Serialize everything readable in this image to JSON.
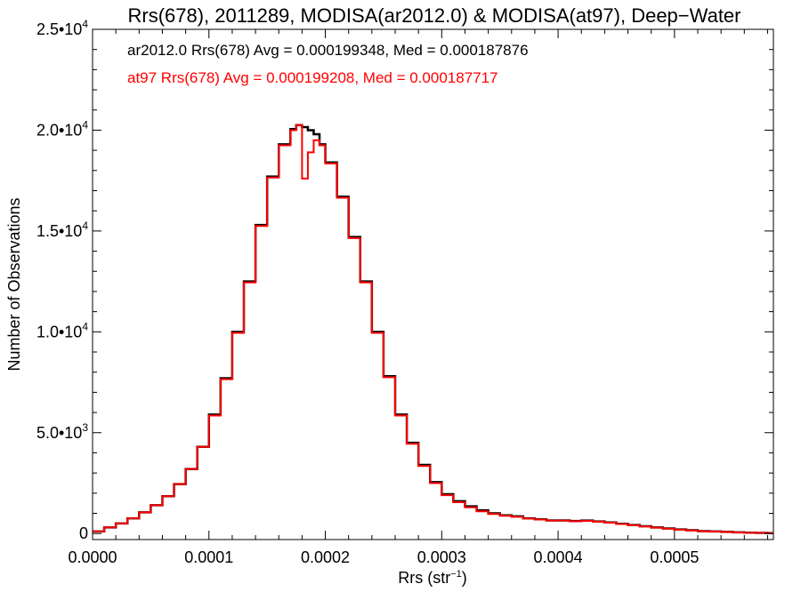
{
  "chart_data": {
    "type": "line",
    "step": true,
    "title": "Rrs(678), 2011289, MODISA(ar2012.0) & MODISA(at97), Deep−Water",
    "xlabel": "Rrs (str",
    "xlabel_sup": "−1",
    "xlabel_close": ")",
    "ylabel": "Number of Observations",
    "xlim": [
      0.0,
      0.000585
    ],
    "ylim": [
      -300,
      25000
    ],
    "x_ticks": [
      {
        "value": 0.0,
        "label": "0.0000"
      },
      {
        "value": 0.0001,
        "label": "0.0001"
      },
      {
        "value": 0.0002,
        "label": "0.0002"
      },
      {
        "value": 0.0003,
        "label": "0.0003"
      },
      {
        "value": 0.0004,
        "label": "0.0004"
      },
      {
        "value": 0.0005,
        "label": "0.0005"
      }
    ],
    "y_ticks": [
      {
        "value": 0,
        "mant": "0",
        "exp": ""
      },
      {
        "value": 5000,
        "mant": "5.0•10",
        "exp": "3"
      },
      {
        "value": 10000,
        "mant": "1.0•10",
        "exp": "4"
      },
      {
        "value": 15000,
        "mant": "1.5•10",
        "exp": "4"
      },
      {
        "value": 20000,
        "mant": "2.0•10",
        "exp": "4"
      },
      {
        "value": 25000,
        "mant": "2.5•10",
        "exp": "4"
      }
    ],
    "annotations": [
      {
        "text": "ar2012.0 Rrs(678) Avg = 0.000199348, Med = 0.000187876",
        "color": "#000000"
      },
      {
        "text": "at97 Rrs(678) Avg = 0.000199208, Med = 0.000187717",
        "color": "#ff0000"
      }
    ],
    "series": [
      {
        "name": "ar2012.0",
        "color": "#000000",
        "x": [
          0.0,
          1e-05,
          2e-05,
          3e-05,
          4e-05,
          5e-05,
          6e-05,
          7e-05,
          8e-05,
          9e-05,
          0.0001,
          0.00011,
          0.00012,
          0.00013,
          0.00014,
          0.00015,
          0.00016,
          0.00017,
          0.000175,
          0.00018,
          0.000185,
          0.00019,
          0.000195,
          0.0002,
          0.00021,
          0.00022,
          0.00023,
          0.00024,
          0.00025,
          0.00026,
          0.00027,
          0.00028,
          0.00029,
          0.0003,
          0.00031,
          0.00032,
          0.00033,
          0.00034,
          0.00035,
          0.00036,
          0.00037,
          0.00038,
          0.00039,
          0.0004,
          0.00041,
          0.00042,
          0.00043,
          0.00044,
          0.00045,
          0.00046,
          0.00047,
          0.00048,
          0.00049,
          0.0005,
          0.00051,
          0.00052,
          0.00053,
          0.00054,
          0.00055,
          0.00056,
          0.00057,
          0.00058
        ],
        "y": [
          100,
          300,
          500,
          750,
          1050,
          1400,
          1850,
          2450,
          3200,
          4300,
          5900,
          7700,
          10000,
          12500,
          15300,
          17700,
          19300,
          20050,
          20250,
          20150,
          20000,
          19800,
          19300,
          18400,
          16700,
          14700,
          12500,
          10000,
          7800,
          5900,
          4500,
          3400,
          2550,
          1950,
          1600,
          1350,
          1150,
          1000,
          900,
          850,
          750,
          700,
          650,
          650,
          620,
          640,
          600,
          550,
          480,
          420,
          360,
          300,
          250,
          200,
          160,
          120,
          100,
          80,
          60,
          40,
          30,
          20
        ]
      },
      {
        "name": "at97",
        "color": "#ff0000",
        "x": [
          0.0,
          1e-05,
          2e-05,
          3e-05,
          4e-05,
          5e-05,
          6e-05,
          7e-05,
          8e-05,
          9e-05,
          0.0001,
          0.00011,
          0.00012,
          0.00013,
          0.00014,
          0.00015,
          0.00016,
          0.00017,
          0.000175,
          0.00018,
          0.000185,
          0.00019,
          0.000195,
          0.0002,
          0.00021,
          0.00022,
          0.00023,
          0.00024,
          0.00025,
          0.00026,
          0.00027,
          0.00028,
          0.00029,
          0.0003,
          0.00031,
          0.00032,
          0.00033,
          0.00034,
          0.00035,
          0.00036,
          0.00037,
          0.00038,
          0.00039,
          0.0004,
          0.00041,
          0.00042,
          0.00043,
          0.00044,
          0.00045,
          0.00046,
          0.00047,
          0.00048,
          0.00049,
          0.0005,
          0.00051,
          0.00052,
          0.00053,
          0.00054,
          0.00055,
          0.00056,
          0.00057,
          0.00058
        ],
        "y": [
          100,
          300,
          500,
          750,
          1050,
          1400,
          1850,
          2450,
          3200,
          4300,
          5850,
          7650,
          9950,
          12450,
          15250,
          17650,
          19250,
          20000,
          20250,
          17600,
          18900,
          19500,
          19250,
          18350,
          16650,
          14650,
          12450,
          9950,
          7750,
          5850,
          4450,
          3350,
          2500,
          1900,
          1550,
          1300,
          1100,
          970,
          880,
          830,
          740,
          690,
          640,
          640,
          610,
          630,
          590,
          540,
          470,
          410,
          350,
          290,
          240,
          190,
          150,
          115,
          95,
          75,
          55,
          38,
          28,
          18
        ]
      }
    ]
  }
}
